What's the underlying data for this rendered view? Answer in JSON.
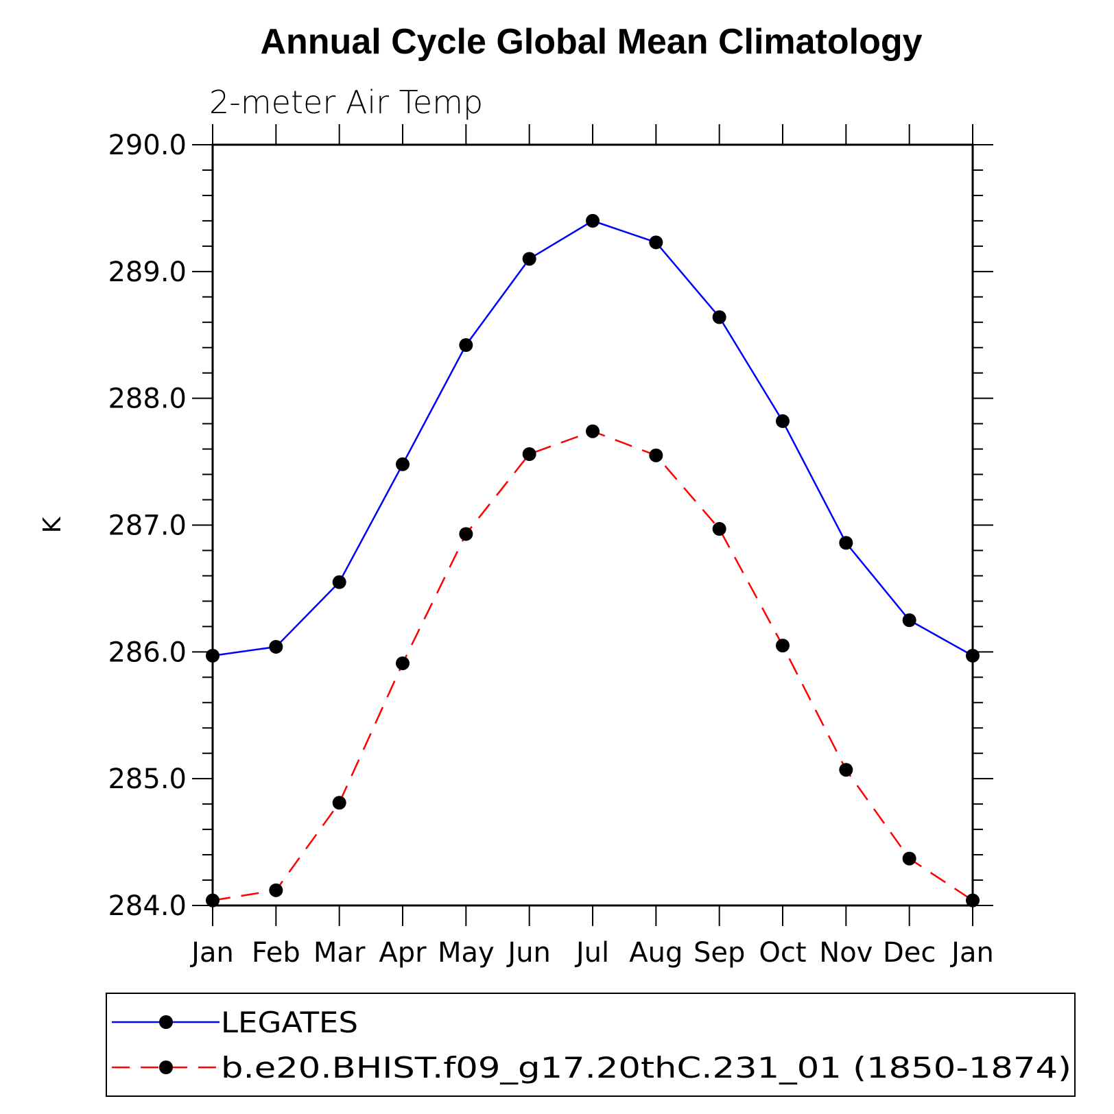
{
  "chart_data": {
    "type": "line",
    "title": "Annual Cycle Global Mean Climatology",
    "subtitle": "2-meter Air Temp",
    "xlabel": "",
    "ylabel": "K",
    "ylim": [
      284.0,
      290.0
    ],
    "yticks": [
      "284.0",
      "285.0",
      "286.0",
      "287.0",
      "288.0",
      "289.0",
      "290.0"
    ],
    "categories": [
      "Jan",
      "Feb",
      "Mar",
      "Apr",
      "May",
      "Jun",
      "Jul",
      "Aug",
      "Sep",
      "Oct",
      "Nov",
      "Dec",
      "Jan"
    ],
    "grid": false,
    "legend_position": "bottom",
    "series": [
      {
        "name": "LEGATES",
        "color": "#0000ff",
        "line_style": "solid",
        "marker": "filled-circle",
        "values": [
          285.97,
          286.04,
          286.55,
          287.48,
          288.42,
          289.1,
          289.4,
          289.23,
          288.64,
          287.82,
          286.86,
          286.25,
          285.97
        ]
      },
      {
        "name": "b.e20.BHIST.f09_g17.20thC.231_01 (1850-1874)",
        "color": "#ff0000",
        "line_style": "dashed",
        "marker": "filled-circle",
        "values": [
          284.04,
          284.12,
          284.81,
          285.91,
          286.93,
          287.56,
          287.74,
          287.55,
          286.97,
          286.05,
          285.07,
          284.37,
          284.04
        ]
      }
    ]
  }
}
